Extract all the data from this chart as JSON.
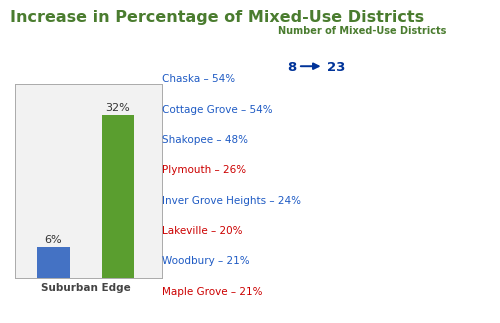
{
  "title": "Increase in Percentage of Mixed-Use Districts",
  "title_color": "#4a7c2f",
  "title_fontsize": 11.5,
  "bar_values": [
    6,
    32
  ],
  "bar_colors": [
    "#4472c4",
    "#5a9e2f"
  ],
  "bar_label_texts": [
    "6%",
    "32%"
  ],
  "x_label": "Suburban Edge",
  "num_districts_label": "Number of Mixed-Use Districts",
  "num_from": "8",
  "num_to": "23",
  "num_color": "#4a7c2f",
  "arrow_color": "#003399",
  "list_items": [
    {
      "text": "Chaska – 54%",
      "color": "#1f5bc4"
    },
    {
      "text": "Cottage Grove – 54%",
      "color": "#1f5bc4"
    },
    {
      "text": "Shakopee – 48%",
      "color": "#1f5bc4"
    },
    {
      "text": "Plymouth – 26%",
      "color": "#cc0000"
    },
    {
      "text": "Inver Grove Heights – 24%",
      "color": "#1f5bc4"
    },
    {
      "text": "Lakeville – 20%",
      "color": "#cc0000"
    },
    {
      "text": "Woodbury – 21%",
      "color": "#1f5bc4"
    },
    {
      "text": "Maple Grove – 21%",
      "color": "#cc0000"
    }
  ]
}
